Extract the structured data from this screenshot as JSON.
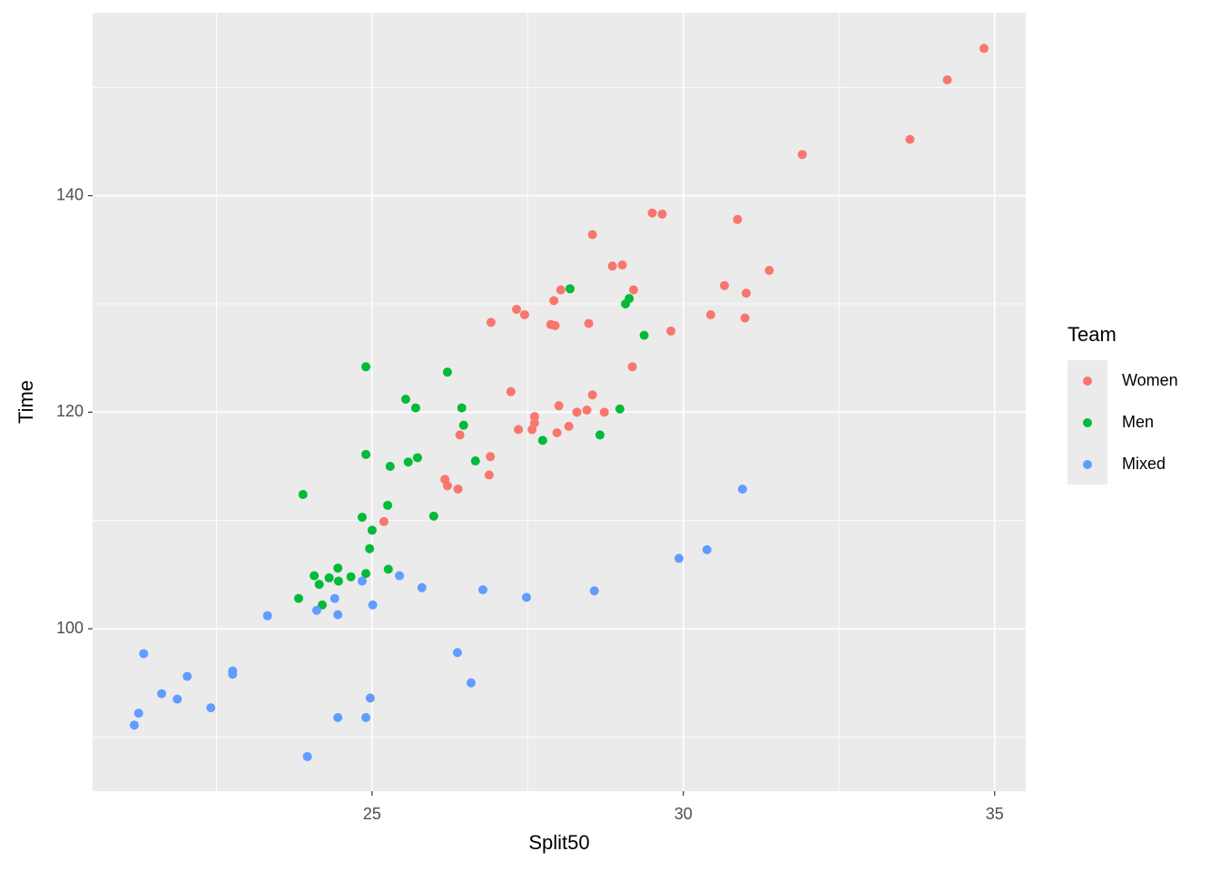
{
  "chart_data": {
    "type": "scatter",
    "x_label": "Split50",
    "y_label": "Time",
    "legend_title": "Team",
    "legend": "right",
    "xlim": [
      20.51,
      35.5
    ],
    "xticks": [
      25,
      30,
      35
    ],
    "xminor": [
      22.5,
      27.5,
      32.5
    ],
    "ylim": [
      85.0,
      156.9
    ],
    "yticks": [
      100,
      120,
      140
    ],
    "yminor": [
      90,
      110,
      130,
      150
    ],
    "grid": true,
    "series": [
      {
        "name": "Women",
        "color": "#f8766d",
        "x": [
          34.83,
          34.24,
          33.64,
          31.91,
          29.5,
          29.66,
          30.87,
          28.54,
          28.86,
          29.02,
          31.38,
          29.2,
          28.03,
          27.92,
          30.66,
          31.01,
          27.32,
          27.45,
          30.44,
          30.99,
          26.91,
          27.87,
          27.94,
          28.48,
          29.8,
          29.18,
          27.23,
          28.54,
          28.0,
          28.45,
          28.29,
          28.73,
          27.61,
          27.61,
          27.35,
          27.57,
          28.16,
          27.97,
          26.41,
          26.9,
          26.88,
          26.17,
          26.21,
          26.38,
          25.19
        ],
        "values": [
          153.6,
          150.7,
          145.2,
          143.8,
          138.4,
          138.3,
          137.8,
          136.4,
          133.5,
          133.6,
          133.1,
          131.3,
          131.3,
          130.3,
          131.7,
          131.0,
          129.5,
          129.0,
          129.0,
          128.7,
          128.3,
          128.1,
          128.0,
          128.2,
          127.5,
          124.2,
          121.9,
          121.6,
          120.6,
          120.2,
          120.0,
          120.0,
          119.6,
          119.0,
          118.4,
          118.4,
          118.7,
          118.1,
          117.9,
          115.9,
          114.2,
          113.8,
          113.2,
          112.9,
          109.9
        ]
      },
      {
        "name": "Men",
        "color": "#00ba38",
        "x": [
          28.18,
          29.13,
          29.07,
          29.37,
          24.9,
          26.21,
          25.54,
          25.7,
          26.44,
          28.98,
          26.47,
          28.66,
          27.74,
          24.9,
          25.73,
          25.58,
          26.66,
          25.29,
          23.89,
          25.25,
          24.84,
          25.99,
          25.0,
          24.96,
          25.26,
          24.45,
          24.9,
          24.07,
          24.66,
          24.31,
          24.46,
          24.15,
          23.82,
          24.2
        ],
        "values": [
          131.4,
          130.5,
          130.0,
          127.1,
          124.2,
          123.7,
          121.2,
          120.4,
          120.4,
          120.3,
          118.8,
          117.9,
          117.4,
          116.1,
          115.8,
          115.4,
          115.5,
          115.0,
          112.4,
          111.4,
          110.3,
          110.4,
          109.1,
          107.4,
          105.5,
          105.6,
          105.1,
          104.9,
          104.8,
          104.7,
          104.4,
          104.1,
          102.8,
          102.2
        ]
      },
      {
        "name": "Mixed",
        "color": "#619cff",
        "x": [
          30.95,
          30.38,
          29.93,
          24.84,
          25.44,
          25.8,
          26.78,
          28.57,
          27.48,
          24.4,
          25.01,
          24.11,
          24.45,
          23.32,
          26.37,
          21.33,
          22.76,
          22.76,
          22.03,
          26.59,
          21.62,
          21.87,
          24.97,
          22.41,
          21.25,
          24.45,
          24.9,
          21.18,
          23.96
        ],
        "values": [
          112.9,
          107.3,
          106.5,
          104.4,
          104.9,
          103.8,
          103.6,
          103.5,
          102.9,
          102.8,
          102.2,
          101.7,
          101.3,
          101.2,
          97.8,
          97.7,
          96.1,
          95.8,
          95.6,
          95.0,
          94.0,
          93.5,
          93.6,
          92.7,
          92.2,
          91.8,
          91.8,
          91.1,
          88.2
        ]
      }
    ]
  }
}
